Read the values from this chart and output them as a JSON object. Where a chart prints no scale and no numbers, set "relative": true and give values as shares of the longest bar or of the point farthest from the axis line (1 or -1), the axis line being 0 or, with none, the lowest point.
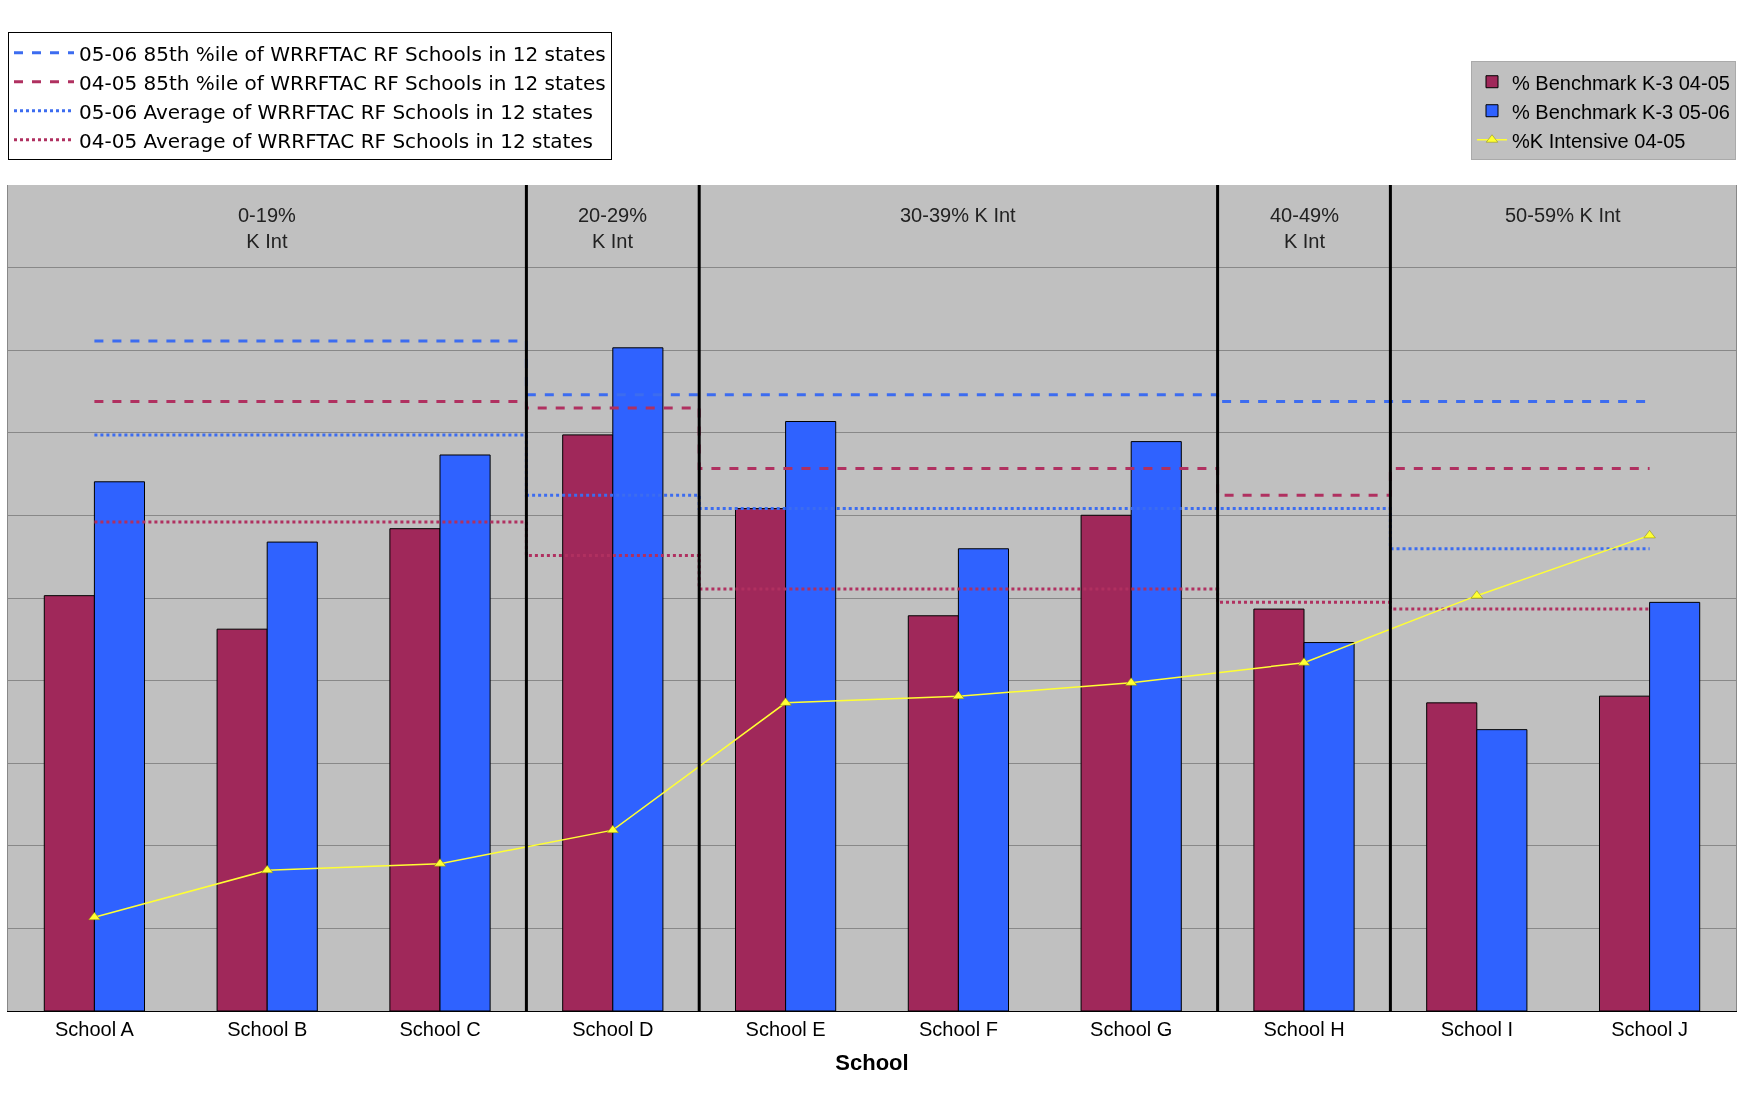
{
  "chart_data": {
    "type": "bar",
    "relative": true,
    "xlabel": "School",
    "categories": [
      "School A",
      "School B",
      "School C",
      "School D",
      "School E",
      "School F",
      "School G",
      "School H",
      "School I",
      "School J"
    ],
    "series": [
      {
        "name": "05-06 85th %ile of WRRFTAC RF Schools in 12 states",
        "type": "step",
        "line_style": "dashed",
        "color": "#3c6cf0",
        "values": [
          1.0,
          1.0,
          1.0,
          0.92,
          0.92,
          0.92,
          0.92,
          0.91,
          0.91,
          0.91
        ]
      },
      {
        "name": "04-05 85th %ile of WRRFTAC RF Schools in 12 states",
        "type": "step",
        "line_style": "dashed",
        "color": "#b03060",
        "values": [
          0.91,
          0.91,
          0.91,
          0.9,
          0.81,
          0.81,
          0.81,
          0.77,
          0.81,
          0.81
        ]
      },
      {
        "name": "05-06 Average of WRRFTAC RF Schools in 12 states",
        "type": "step",
        "line_style": "dotted",
        "color": "#3c6cf0",
        "values": [
          0.86,
          0.86,
          0.86,
          0.77,
          0.75,
          0.75,
          0.75,
          0.75,
          0.69,
          0.69
        ]
      },
      {
        "name": "04-05 Average of WRRFTAC RF Schools in 12 states",
        "type": "step",
        "line_style": "dotted",
        "color": "#b03060",
        "values": [
          0.73,
          0.73,
          0.73,
          0.68,
          0.63,
          0.63,
          0.63,
          0.61,
          0.6,
          0.6
        ]
      },
      {
        "name": "% Benchmark K-3 04-05",
        "color": "#a0285a",
        "values": [
          0.62,
          0.57,
          0.72,
          0.86,
          0.75,
          0.59,
          0.74,
          0.6,
          0.46,
          0.47
        ]
      },
      {
        "name": "% Benchmark K-3 05-06",
        "color": "#2f62ff",
        "values": [
          0.79,
          0.7,
          0.83,
          0.99,
          0.88,
          0.69,
          0.85,
          0.55,
          0.42,
          0.61
        ]
      },
      {
        "name": "%K Intensive 04-05",
        "type": "line",
        "marker": "triangle",
        "line_style": "solid",
        "color": "#ffff33",
        "values": [
          0.14,
          0.21,
          0.22,
          0.27,
          0.46,
          0.47,
          0.49,
          0.52,
          0.62,
          0.71
        ]
      }
    ],
    "annotations": [
      "0-19%\nK Int",
      "20-29%\nK Int",
      "30-39% K Int",
      "40-49%\nK Int",
      "50-59% K Int"
    ],
    "grid": "y",
    "legend": "top"
  }
}
